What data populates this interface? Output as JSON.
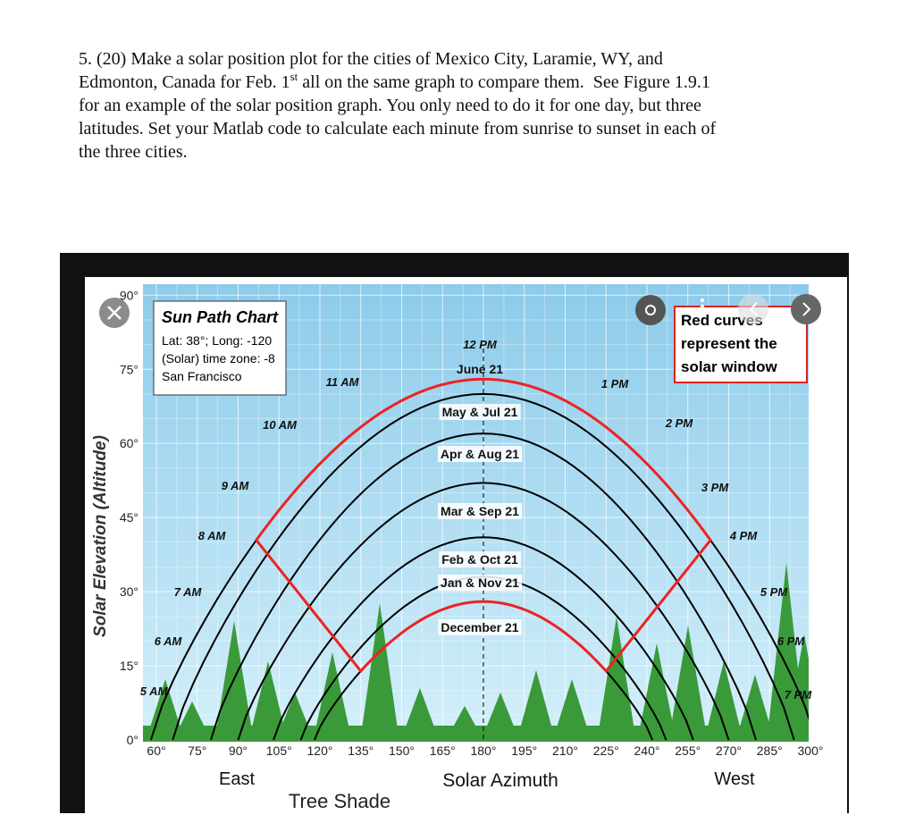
{
  "question": {
    "line_1": "5. (20) Make a solar position plot for the cities of Mexico City, Laramie, WY, and",
    "line_2_start": "Edmonton, Canada for Feb. 1",
    "line_2_sup": "st",
    "line_2_end": " all on the same graph to compare them.  See Figure 1.9.1",
    "line_3": "for an example of the solar position graph.  You only need to do it for one day, but three",
    "line_4": "latitudes.  Set your Matlab code to calculate each minute from sunrise to sunset in each of",
    "line_5": "the three cities."
  },
  "figure": {
    "title": "Sun Path Chart",
    "info": [
      "Lat: 38°; Long: -120",
      "(Solar) time zone: -8",
      "San Francisco"
    ],
    "note": [
      "Red curves",
      "represent the",
      "solar window"
    ],
    "y_axis_label": "Solar Elevation (Altitude)",
    "y_ticks": [
      "0°",
      "15°",
      "30°",
      "45°",
      "60°",
      "75°",
      "90°"
    ],
    "x_ticks": [
      "60°",
      "75°",
      "90°",
      "105°",
      "120°",
      "135°",
      "150°",
      "165°",
      "180°",
      "195°",
      "210°",
      "225°",
      "240°",
      "255°",
      "270°",
      "285°",
      "300°"
    ],
    "x_axis_label": "Solar Azimuth",
    "east": "East",
    "west": "West",
    "hour_labels": [
      "5 AM",
      "6 AM",
      "7 AM",
      "8 AM",
      "9 AM",
      "10 AM",
      "11 AM",
      "12 PM",
      "1 PM",
      "2 PM",
      "3 PM",
      "4 PM",
      "5 PM",
      "6 PM",
      "7 PM"
    ],
    "date_labels": [
      "June 21",
      "May & Jul 21",
      "Apr & Aug 21",
      "Mar & Sep 21",
      "Feb & Oct 21",
      "Jan & Nov 21",
      "December 21"
    ],
    "caption_fragment": "Tree Shade"
  }
}
